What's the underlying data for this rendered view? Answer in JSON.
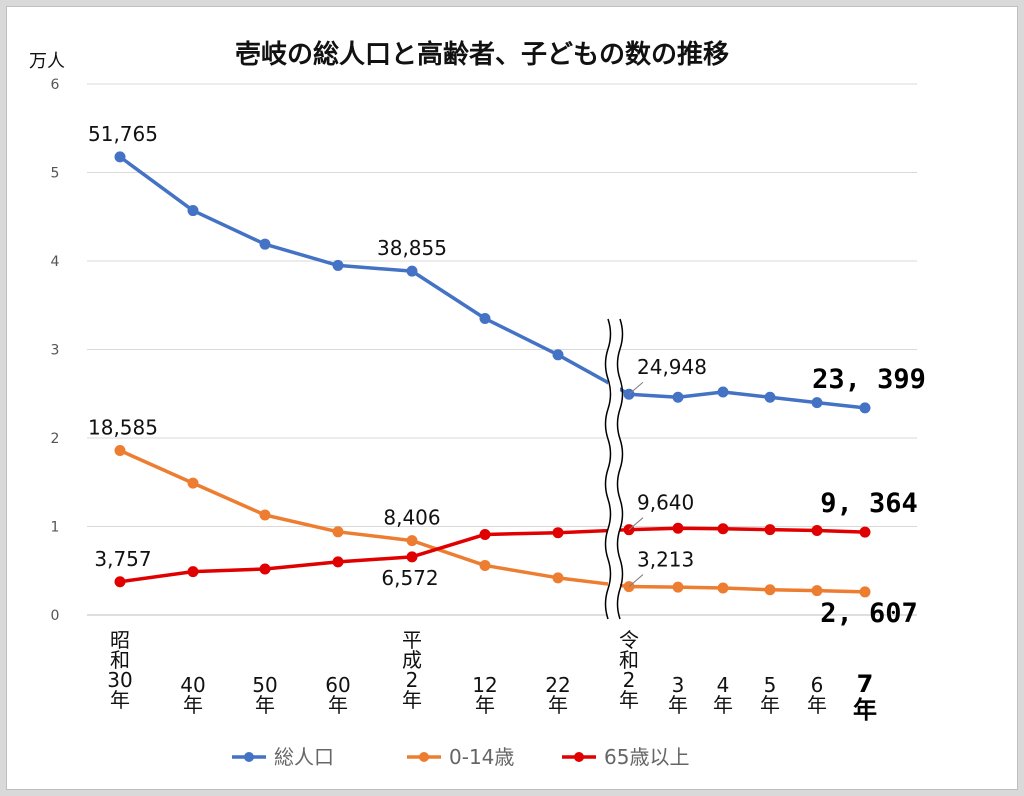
{
  "chart_data": {
    "type": "line",
    "title": "壱岐の総人口と高齢者、子どもの数の推移",
    "ylabel": "万人",
    "ylim": [
      0,
      6
    ],
    "yticks": [
      "0",
      "1",
      "2",
      "3",
      "4",
      "5",
      "6"
    ],
    "grid": true,
    "axis_break_after": "22年",
    "legend_position": "bottom",
    "categories": [
      {
        "lines": [
          "昭",
          "和",
          "30",
          "年"
        ],
        "bold": false
      },
      {
        "lines": [
          "40",
          "年"
        ],
        "bold": false
      },
      {
        "lines": [
          "50",
          "年"
        ],
        "bold": false
      },
      {
        "lines": [
          "60",
          "年"
        ],
        "bold": false
      },
      {
        "lines": [
          "平",
          "成",
          "2",
          "年"
        ],
        "bold": false
      },
      {
        "lines": [
          "12",
          "年"
        ],
        "bold": false
      },
      {
        "lines": [
          "22",
          "年"
        ],
        "bold": false
      },
      {
        "lines": [
          "令",
          "和",
          "2",
          "年"
        ],
        "bold": false
      },
      {
        "lines": [
          "3",
          "年"
        ],
        "bold": false
      },
      {
        "lines": [
          "4",
          "年"
        ],
        "bold": false
      },
      {
        "lines": [
          "5",
          "年"
        ],
        "bold": false
      },
      {
        "lines": [
          "6",
          "年"
        ],
        "bold": false
      },
      {
        "lines": [
          "7",
          "年"
        ],
        "bold": true
      }
    ],
    "series": [
      {
        "name": "総人口",
        "color": "#4472c4",
        "values": [
          51765,
          45700,
          41900,
          39500,
          38855,
          33500,
          29400,
          24948,
          24600,
          25200,
          24600,
          24000,
          23399
        ]
      },
      {
        "name": "0-14歳",
        "color": "#ed7d31",
        "values": [
          18585,
          14900,
          11300,
          9400,
          8406,
          5600,
          4200,
          3213,
          3150,
          3050,
          2850,
          2750,
          2607
        ]
      },
      {
        "name": "65歳以上",
        "color": "#e00000",
        "values": [
          3757,
          4900,
          5200,
          6000,
          6572,
          9100,
          9300,
          9640,
          9800,
          9750,
          9650,
          9550,
          9364
        ]
      }
    ],
    "data_labels": [
      {
        "series": 0,
        "index": 0,
        "text": "51,765",
        "bold": false
      },
      {
        "series": 0,
        "index": 4,
        "text": "38,855",
        "bold": false
      },
      {
        "series": 0,
        "index": 7,
        "text": "24,948",
        "bold": false
      },
      {
        "series": 0,
        "index": 12,
        "text": "23, 399",
        "bold": true
      },
      {
        "series": 1,
        "index": 0,
        "text": "18,585",
        "bold": false
      },
      {
        "series": 1,
        "index": 4,
        "text": "8,406",
        "bold": false
      },
      {
        "series": 1,
        "index": 7,
        "text": "3,213",
        "bold": false
      },
      {
        "series": 1,
        "index": 12,
        "text": "2, 607",
        "bold": true
      },
      {
        "series": 2,
        "index": 0,
        "text": "3,757",
        "bold": false
      },
      {
        "series": 2,
        "index": 4,
        "text": "6,572",
        "bold": false
      },
      {
        "series": 2,
        "index": 7,
        "text": "9,640",
        "bold": false
      },
      {
        "series": 2,
        "index": 12,
        "text": "9, 364",
        "bold": true
      }
    ]
  }
}
